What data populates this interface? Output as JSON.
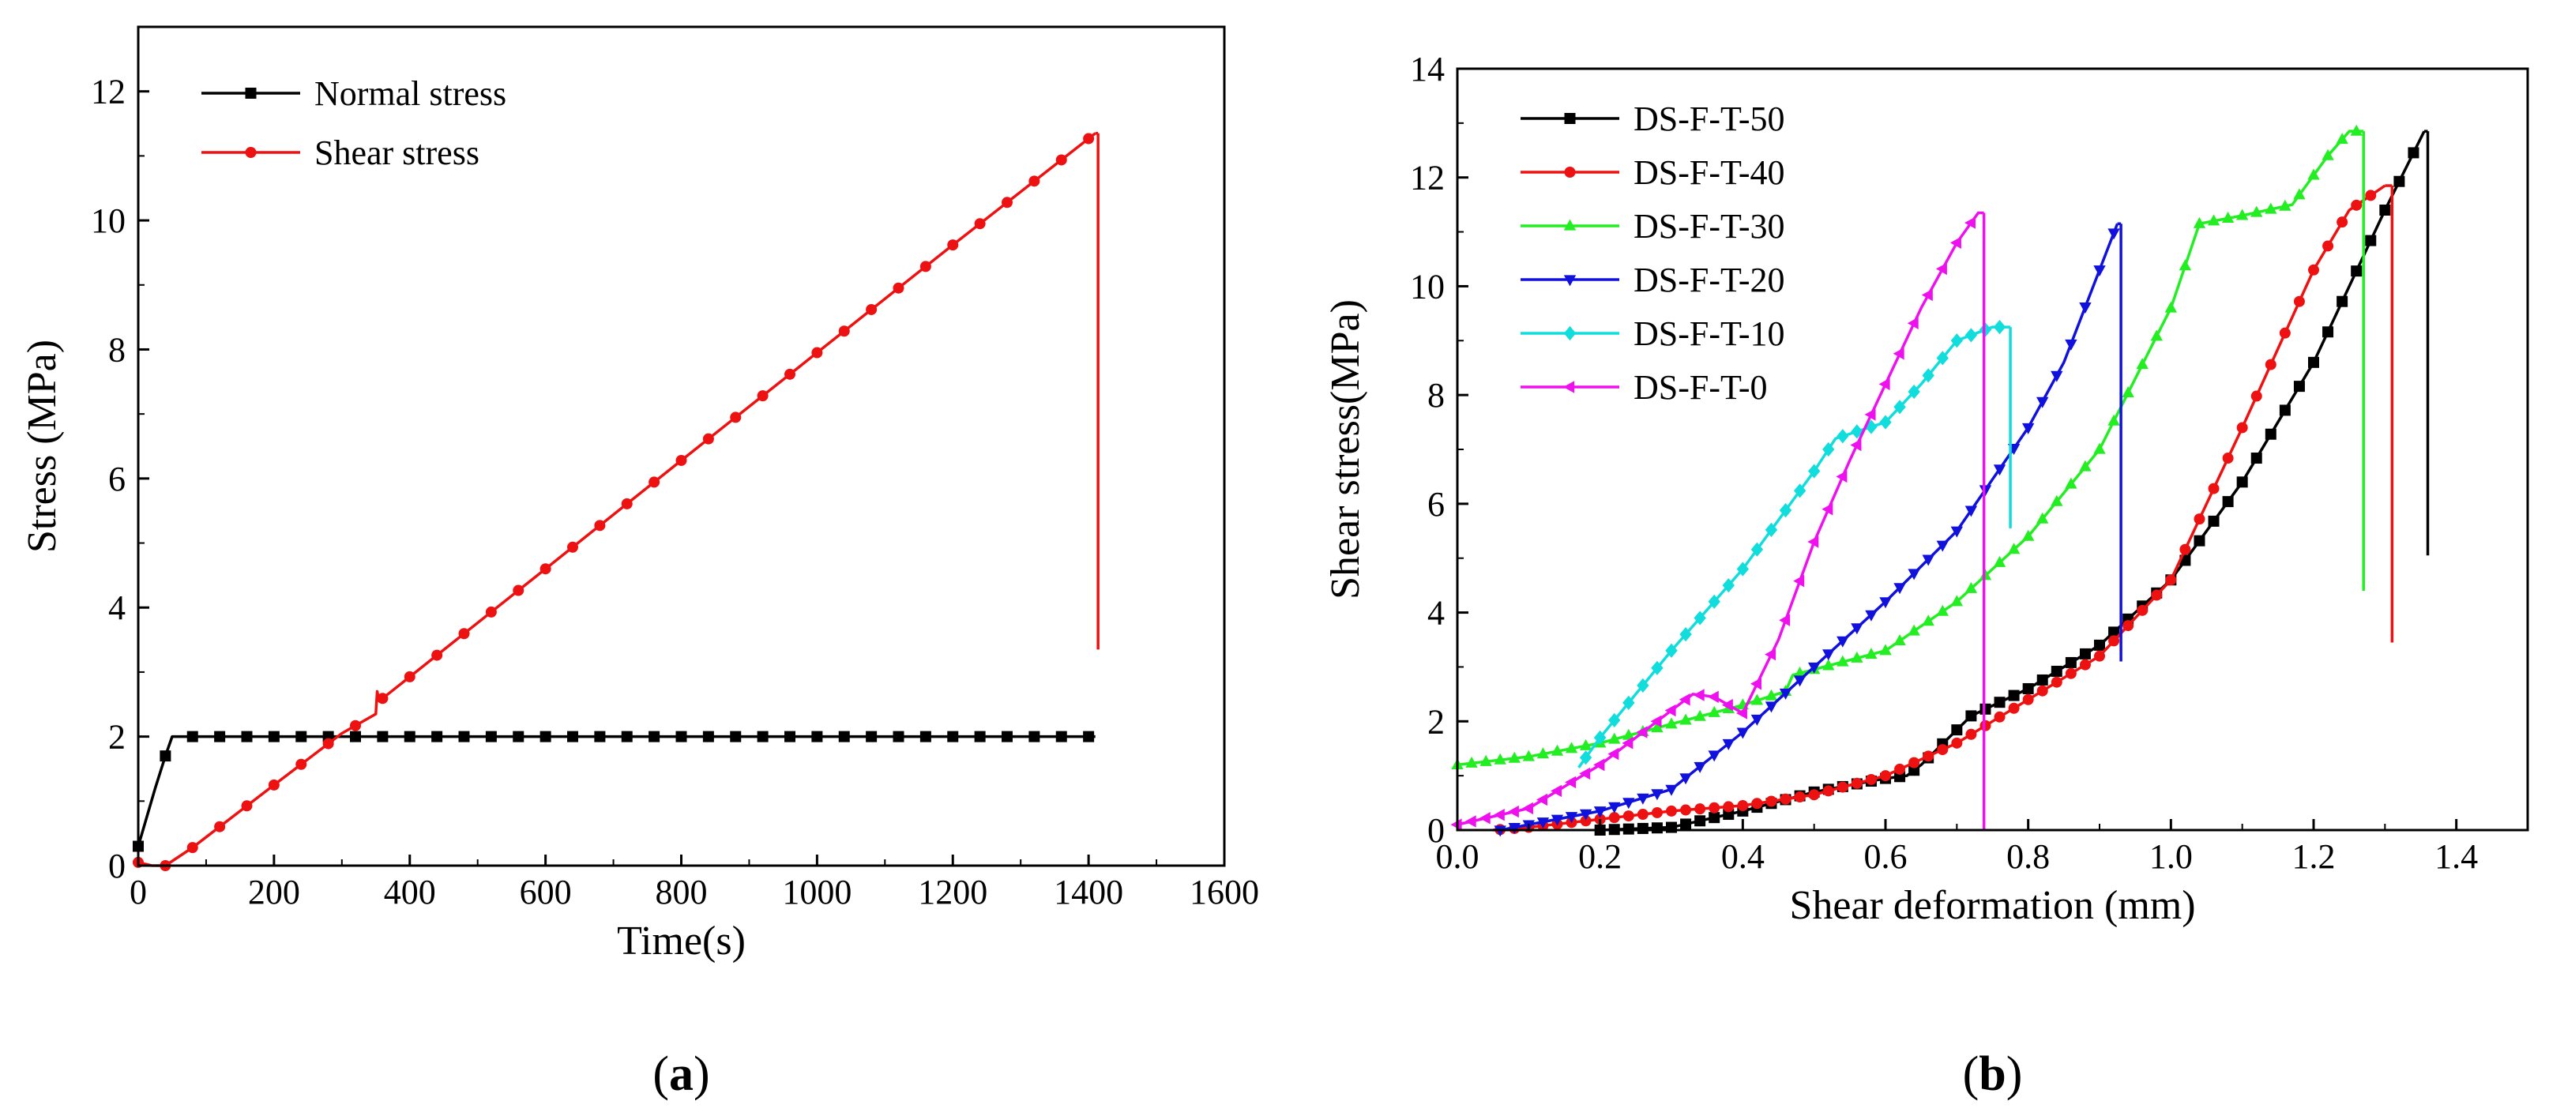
{
  "chart_data": [
    {
      "id": "a",
      "type": "line",
      "panel_label": "a",
      "xlabel": "Time(s)",
      "ylabel": "Stress (MPa)",
      "xlim": [
        0,
        1600
      ],
      "ylim": [
        0,
        13
      ],
      "xticks": [
        0,
        200,
        400,
        600,
        800,
        1000,
        1200,
        1400,
        1600
      ],
      "yticks": [
        0,
        2,
        4,
        6,
        8,
        10,
        12
      ],
      "legend_position": "top-left",
      "series": [
        {
          "name": "Normal stress",
          "color": "#000000",
          "marker": "square",
          "points": [
            [
              0,
              0.3
            ],
            [
              25,
              1.2
            ],
            [
              40,
              1.7
            ],
            [
              50,
              2.0
            ],
            [
              70,
              2.0
            ],
            [
              1410,
              2.0
            ]
          ],
          "drops": []
        },
        {
          "name": "Shear stress",
          "color": "#ee1111",
          "marker": "circle",
          "points": [
            [
              0,
              0.05
            ],
            [
              20,
              0.0
            ],
            [
              40,
              0.0
            ],
            [
              80,
              0.28
            ],
            [
              200,
              1.25
            ],
            [
              300,
              2.05
            ],
            [
              350,
              2.35
            ],
            [
              352,
              2.7
            ],
            [
              355,
              2.55
            ],
            [
              600,
              4.6
            ],
            [
              800,
              6.28
            ],
            [
              1000,
              7.95
            ],
            [
              1200,
              9.62
            ],
            [
              1410,
              11.35
            ]
          ],
          "drops": [
            [
              1414,
              11.35,
              3.35
            ]
          ]
        }
      ]
    },
    {
      "id": "b",
      "type": "line",
      "panel_label": "b",
      "xlabel": "Shear deformation (mm)",
      "ylabel": "Shear stress(MPa)",
      "xlim": [
        0,
        1.5
      ],
      "ylim": [
        0,
        14
      ],
      "xticks": [
        0.0,
        0.2,
        0.4,
        0.6,
        0.8,
        1.0,
        1.2,
        1.4
      ],
      "yticks": [
        0,
        2,
        4,
        6,
        8,
        10,
        12,
        14
      ],
      "legend_position": "top-left",
      "series": [
        {
          "name": "DS-F-T-50",
          "color": "#000000",
          "marker": "square",
          "points": [
            [
              0.2,
              0.0
            ],
            [
              0.3,
              0.05
            ],
            [
              0.4,
              0.35
            ],
            [
              0.5,
              0.7
            ],
            [
              0.6,
              0.95
            ],
            [
              0.63,
              1.0
            ],
            [
              0.65,
              1.2
            ],
            [
              0.72,
              2.1
            ],
            [
              0.8,
              2.6
            ],
            [
              0.9,
              3.4
            ],
            [
              1.0,
              4.6
            ],
            [
              1.1,
              6.4
            ],
            [
              1.2,
              8.6
            ],
            [
              1.3,
              11.4
            ],
            [
              1.355,
              12.85
            ]
          ],
          "drops": [
            [
              1.36,
              12.85,
              5.05
            ]
          ]
        },
        {
          "name": "DS-F-T-40",
          "color": "#ee1111",
          "marker": "circle",
          "points": [
            [
              0.05,
              0.0
            ],
            [
              0.1,
              0.05
            ],
            [
              0.2,
              0.2
            ],
            [
              0.3,
              0.35
            ],
            [
              0.4,
              0.45
            ],
            [
              0.5,
              0.65
            ],
            [
              0.6,
              1.0
            ],
            [
              0.7,
              1.6
            ],
            [
              0.8,
              2.4
            ],
            [
              0.9,
              3.2
            ],
            [
              1.0,
              4.6
            ],
            [
              1.1,
              7.4
            ],
            [
              1.2,
              10.3
            ],
            [
              1.25,
              11.4
            ],
            [
              1.3,
              11.85
            ]
          ],
          "drops": [
            [
              1.31,
              11.85,
              3.45
            ]
          ]
        },
        {
          "name": "DS-F-T-30",
          "color": "#22ee22",
          "marker": "triangle-up",
          "points": [
            [
              0.0,
              1.2
            ],
            [
              0.1,
              1.35
            ],
            [
              0.2,
              1.6
            ],
            [
              0.3,
              1.95
            ],
            [
              0.4,
              2.3
            ],
            [
              0.46,
              2.55
            ],
            [
              0.47,
              2.85
            ],
            [
              0.6,
              3.3
            ],
            [
              0.7,
              4.2
            ],
            [
              0.8,
              5.4
            ],
            [
              0.9,
              7.0
            ],
            [
              1.0,
              9.6
            ],
            [
              1.04,
              11.15
            ],
            [
              1.1,
              11.3
            ],
            [
              1.17,
              11.5
            ],
            [
              1.22,
              12.4
            ],
            [
              1.25,
              12.85
            ],
            [
              1.27,
              12.85
            ]
          ],
          "drops": [
            [
              1.27,
              12.85,
              4.4
            ]
          ]
        },
        {
          "name": "DS-F-T-20",
          "color": "#1111dd",
          "marker": "triangle-down",
          "points": [
            [
              0.06,
              0.0
            ],
            [
              0.1,
              0.1
            ],
            [
              0.2,
              0.35
            ],
            [
              0.3,
              0.75
            ],
            [
              0.4,
              1.8
            ],
            [
              0.5,
              3.0
            ],
            [
              0.6,
              4.2
            ],
            [
              0.7,
              5.5
            ],
            [
              0.8,
              7.4
            ],
            [
              0.85,
              8.6
            ],
            [
              0.9,
              10.3
            ],
            [
              0.925,
              11.15
            ]
          ],
          "drops": [
            [
              0.93,
              11.15,
              3.1
            ]
          ]
        },
        {
          "name": "DS-F-T-10",
          "color": "#11dddd",
          "marker": "diamond",
          "points": [
            [
              0.17,
              1.15
            ],
            [
              0.2,
              1.7
            ],
            [
              0.3,
              3.3
            ],
            [
              0.4,
              4.8
            ],
            [
              0.5,
              6.6
            ],
            [
              0.53,
              7.2
            ],
            [
              0.6,
              7.5
            ],
            [
              0.65,
              8.2
            ],
            [
              0.7,
              9.0
            ],
            [
              0.75,
              9.25
            ],
            [
              0.775,
              9.25
            ]
          ],
          "drops": [
            [
              0.775,
              9.25,
              5.55
            ]
          ]
        },
        {
          "name": "DS-F-T-0",
          "color": "#ee11ee",
          "marker": "triangle-left",
          "points": [
            [
              0.0,
              0.1
            ],
            [
              0.1,
              0.4
            ],
            [
              0.2,
              1.2
            ],
            [
              0.3,
              2.2
            ],
            [
              0.33,
              2.5
            ],
            [
              0.36,
              2.45
            ],
            [
              0.4,
              2.15
            ],
            [
              0.45,
              3.5
            ],
            [
              0.5,
              5.3
            ],
            [
              0.55,
              6.8
            ],
            [
              0.6,
              8.2
            ],
            [
              0.65,
              9.6
            ],
            [
              0.7,
              10.8
            ],
            [
              0.73,
              11.35
            ],
            [
              0.738,
              11.35
            ]
          ],
          "drops": [
            [
              0.738,
              11.35,
              0.0
            ]
          ]
        }
      ]
    }
  ]
}
